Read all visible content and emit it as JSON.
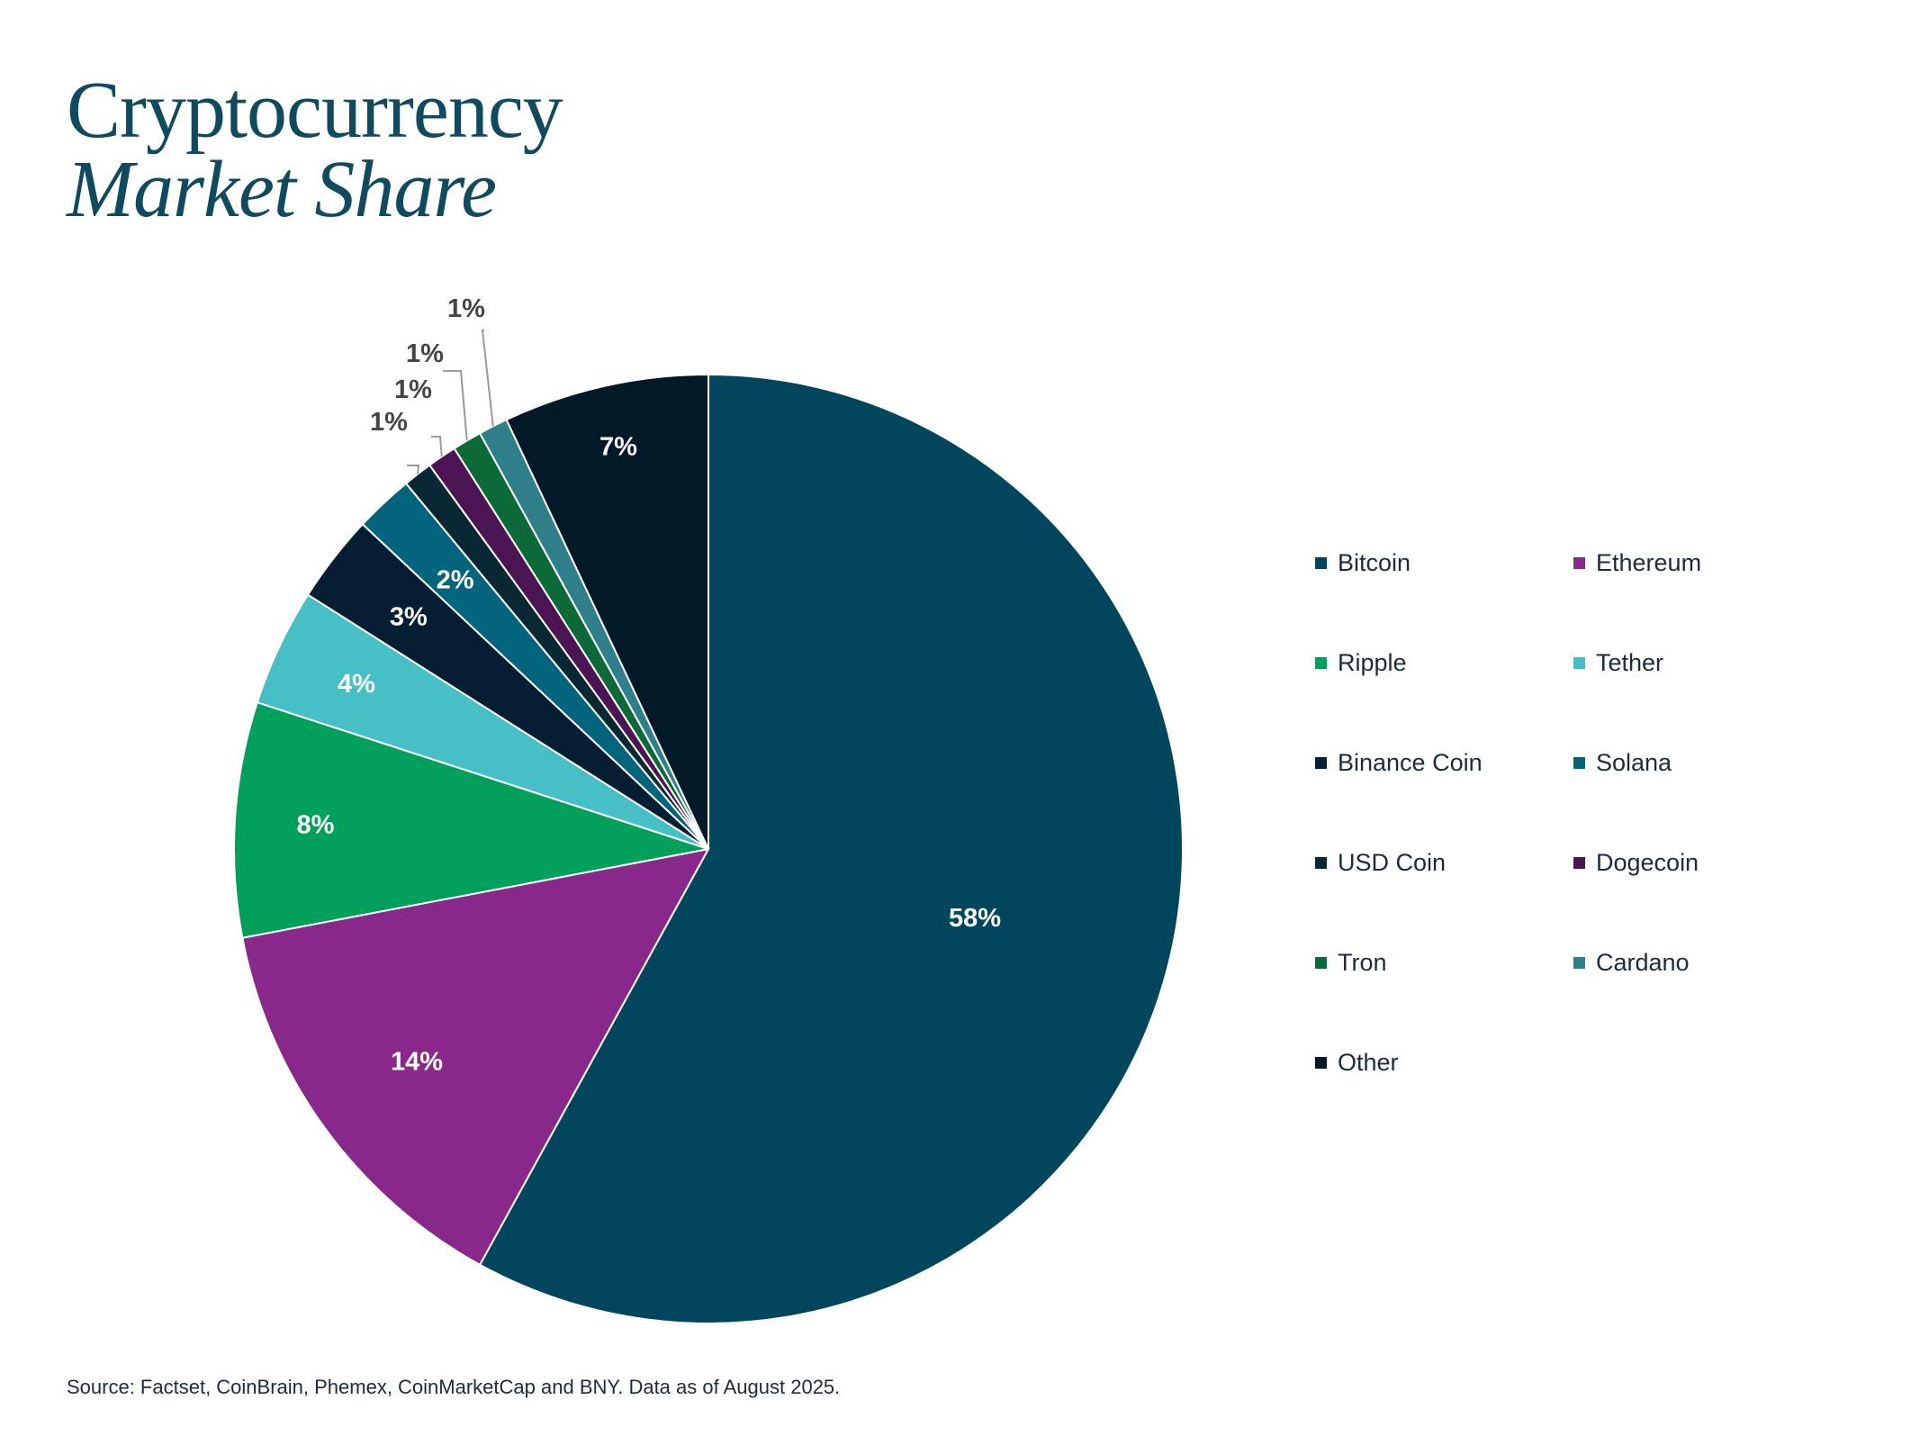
{
  "title": {
    "line1": "Cryptocurrency",
    "line2": "Market Share"
  },
  "source": "Source: Factset, CoinBrain, Phemex, CoinMarketCap and BNY. Data as of August 2025.",
  "chart_data": {
    "type": "pie",
    "title": "Cryptocurrency Market Share",
    "unit": "%",
    "legend_position": "right",
    "slices": [
      {
        "name": "Bitcoin",
        "value": 58,
        "label": "58%",
        "color": "#02465d"
      },
      {
        "name": "Ethereum",
        "value": 14,
        "label": "14%",
        "color": "#88288a"
      },
      {
        "name": "Ripple",
        "value": 8,
        "label": "8%",
        "color": "#00a05a"
      },
      {
        "name": "Tether",
        "value": 4,
        "label": "4%",
        "color": "#46bfc7"
      },
      {
        "name": "Binance Coin",
        "value": 3,
        "label": "3%",
        "color": "#051e33"
      },
      {
        "name": "Solana",
        "value": 2,
        "label": "2%",
        "color": "#03647e"
      },
      {
        "name": "USD Coin",
        "value": 1,
        "label": "1%",
        "color": "#0a2734"
      },
      {
        "name": "Dogecoin",
        "value": 1,
        "label": "1%",
        "color": "#4a1552"
      },
      {
        "name": "Tron",
        "value": 1,
        "label": "1%",
        "color": "#0c6a38"
      },
      {
        "name": "Cardano",
        "value": 1,
        "label": "1%",
        "color": "#2e7f8a"
      },
      {
        "name": "Other",
        "value": 7,
        "label": "7%",
        "color": "#021927"
      }
    ]
  }
}
